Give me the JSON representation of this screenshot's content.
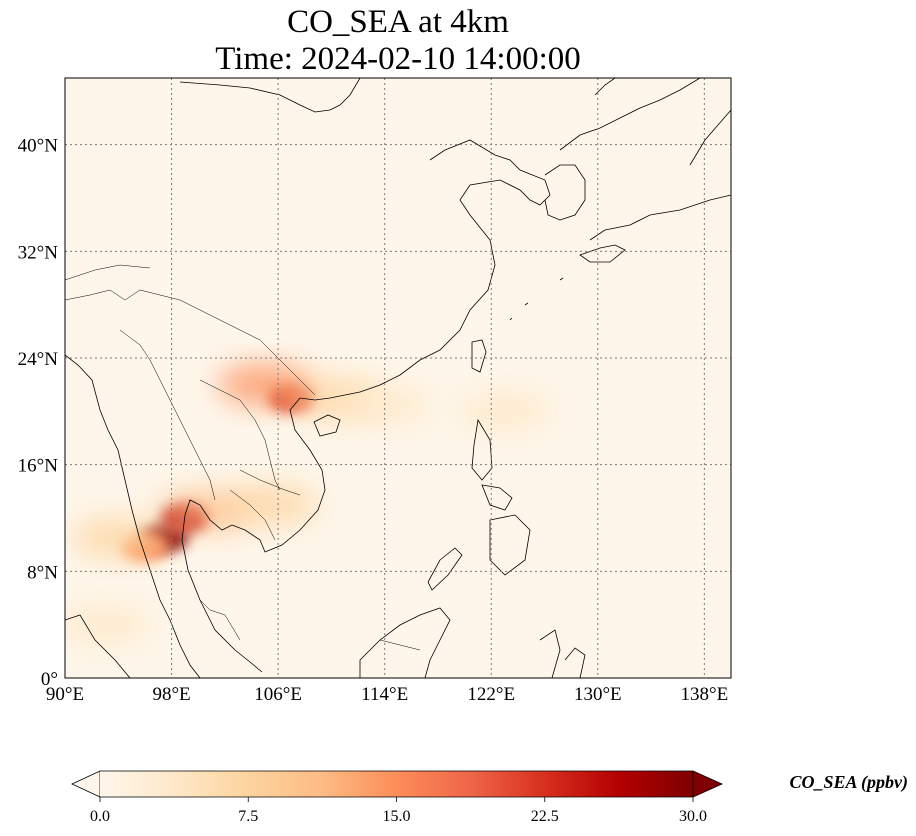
{
  "title_line1": "CO_SEA at 4km",
  "title_line2": "Time: 2024-02-10 14:00:00",
  "map": {
    "lon_range": [
      90,
      140
    ],
    "lat_range": [
      0,
      45
    ],
    "x_ticks": [
      90,
      98,
      106,
      114,
      122,
      130,
      138
    ],
    "x_tick_labels": [
      "90°E",
      "98°E",
      "106°E",
      "114°E",
      "122°E",
      "130°E",
      "138°E"
    ],
    "y_ticks": [
      0,
      8,
      16,
      24,
      32,
      40
    ],
    "y_tick_labels": [
      "0°",
      "8°N",
      "16°N",
      "24°N",
      "32°N",
      "40°N"
    ],
    "gridlines": "dotted",
    "background_color": "#fef6ea",
    "coastline_color": "#000000"
  },
  "colorbar": {
    "label": "CO_SEA (ppbv)",
    "min": 0.0,
    "max": 30.0,
    "ticks": [
      0.0,
      7.5,
      15.0,
      22.5,
      30.0
    ],
    "tick_labels": [
      "0.0",
      "7.5",
      "15.0",
      "22.5",
      "30.0"
    ],
    "colormap": "OrRd",
    "extend": "both",
    "colors": [
      "#fff7ec",
      "#fee8c8",
      "#fdd49e",
      "#fdbb84",
      "#fc8d59",
      "#ef6548",
      "#d7301f",
      "#b30000",
      "#7f0000"
    ]
  },
  "plumes": [
    {
      "lon": 97.5,
      "lat": 10.5,
      "value": 30
    },
    {
      "lon": 99.0,
      "lat": 12.0,
      "value": 28
    },
    {
      "lon": 96.0,
      "lat": 9.8,
      "value": 16
    },
    {
      "lon": 94.0,
      "lat": 10.5,
      "value": 7
    },
    {
      "lon": 100.5,
      "lat": 12.5,
      "value": 12
    },
    {
      "lon": 107.0,
      "lat": 21.0,
      "value": 22
    },
    {
      "lon": 105.0,
      "lat": 22.0,
      "value": 14
    },
    {
      "lon": 110.0,
      "lat": 21.0,
      "value": 9
    },
    {
      "lon": 114.0,
      "lat": 20.5,
      "value": 5
    },
    {
      "lon": 123.0,
      "lat": 20.0,
      "value": 3
    },
    {
      "lon": 105.5,
      "lat": 13.0,
      "value": 8
    },
    {
      "lon": 93.0,
      "lat": 4.0,
      "value": 4
    }
  ]
}
